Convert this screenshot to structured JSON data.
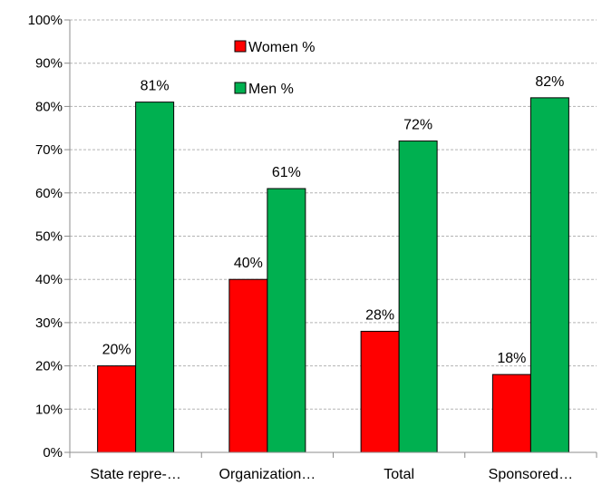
{
  "chart_data": {
    "type": "bar",
    "categories": [
      "State repre-…",
      "Organization…",
      "Total",
      "Sponsored…"
    ],
    "series": [
      {
        "name": "Women %",
        "values": [
          20,
          40,
          28,
          18
        ],
        "labels": [
          "20%",
          "40%",
          "28%",
          "18%"
        ],
        "color": "#ff0000"
      },
      {
        "name": "Men %",
        "values": [
          81,
          61,
          72,
          82
        ],
        "labels": [
          "81%",
          "61%",
          "72%",
          "82%"
        ],
        "color": "#00b050"
      }
    ],
    "ylim": [
      0,
      100
    ],
    "yticks": [
      0,
      10,
      20,
      30,
      40,
      50,
      60,
      70,
      80,
      90,
      100
    ],
    "ytick_labels": [
      "0%",
      "10%",
      "20%",
      "30%",
      "40%",
      "50%",
      "60%",
      "70%",
      "80%",
      "90%",
      "100%"
    ],
    "grid": true,
    "legend_position": "top-center"
  }
}
